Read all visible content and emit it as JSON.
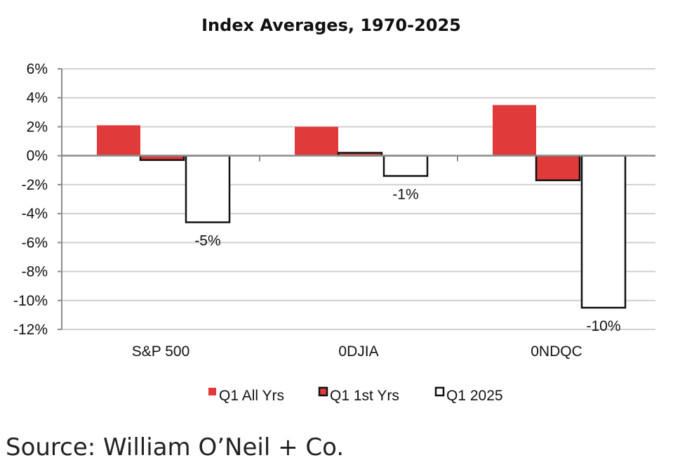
{
  "chart_data": {
    "type": "bar",
    "title": "Index Averages, 1970-2025",
    "xlabel": "",
    "ylabel": "",
    "ylim": [
      -12,
      6
    ],
    "yticks": [
      6,
      4,
      2,
      0,
      -2,
      -4,
      -6,
      -8,
      -10,
      -12
    ],
    "ytick_labels": [
      "6%",
      "4%",
      "2%",
      "0%",
      "-2%",
      "-4%",
      "-6%",
      "-8%",
      "-10%",
      "-12%"
    ],
    "categories": [
      "S&P 500",
      "0DJIA",
      "0NDQC"
    ],
    "series": [
      {
        "name": "Q1 All Yrs",
        "values": [
          2.1,
          2.0,
          3.5
        ],
        "color": "#e03a3a",
        "stroke": "#e03a3a"
      },
      {
        "name": "Q1 1st Yrs",
        "values": [
          -0.3,
          0.2,
          -1.7
        ],
        "color": "#e03a3a",
        "stroke": "#111111"
      },
      {
        "name": "Q1 2025",
        "values": [
          -4.6,
          -1.4,
          -10.5
        ],
        "color": "#ffffff",
        "stroke": "#111111"
      }
    ],
    "data_labels": [
      {
        "series": 2,
        "category": 0,
        "text": "-5%"
      },
      {
        "series": 2,
        "category": 1,
        "text": "-1%"
      },
      {
        "series": 2,
        "category": 2,
        "text": "-10%"
      }
    ],
    "grid": true,
    "legend_position": "bottom"
  },
  "source": "Source: William O’Neil + Co.",
  "colors": {
    "grid": "#d0d0d0",
    "axis": "#8c8c8c",
    "red": "#e03a3a",
    "outline": "#111111"
  }
}
